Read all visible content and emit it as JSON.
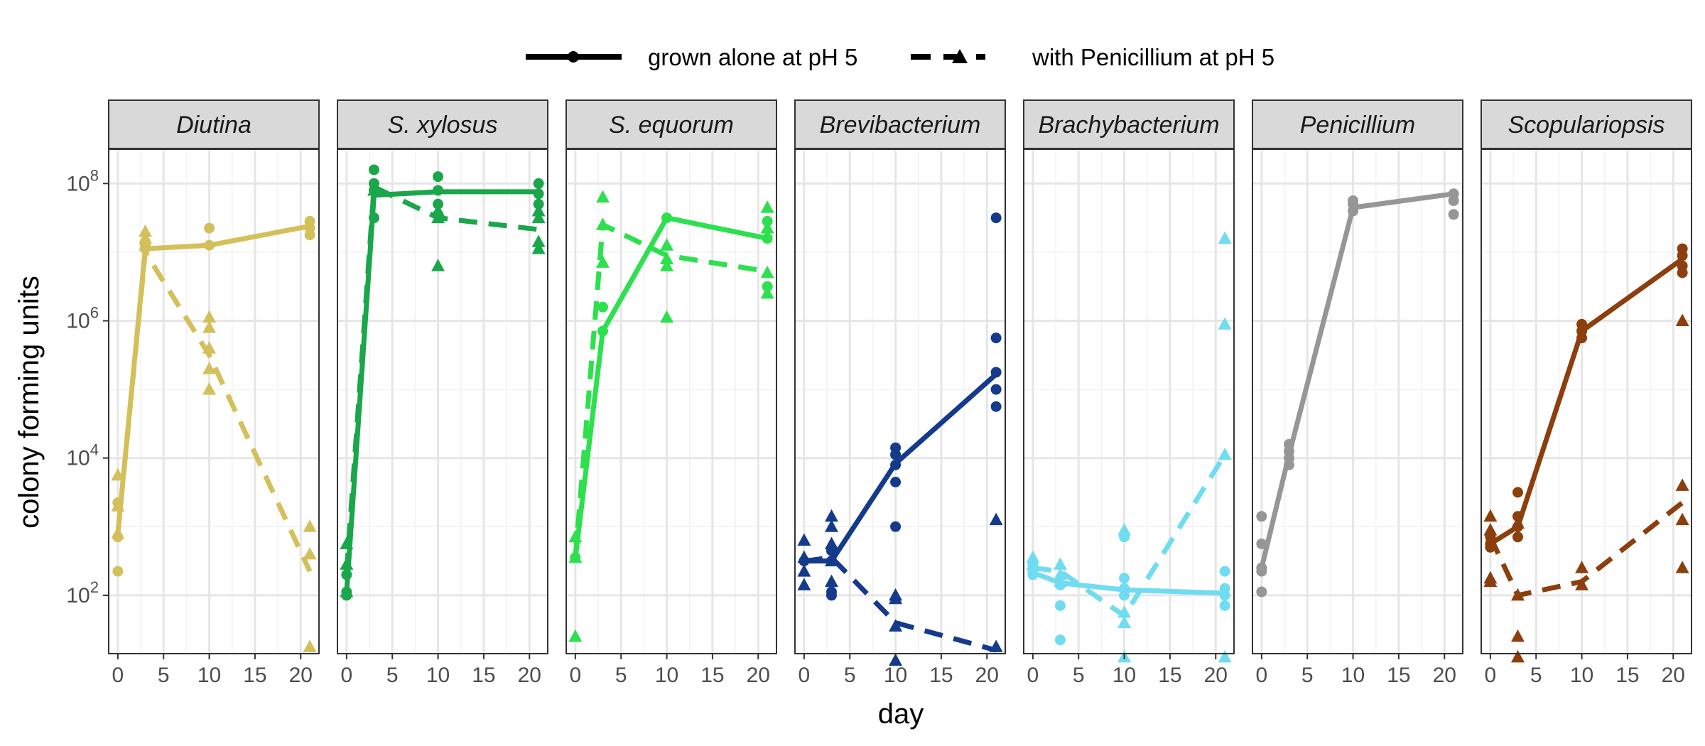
{
  "chart_data": {
    "type": "line",
    "xlabel": "day",
    "ylabel": "colony forming units",
    "x_ticks": [
      0,
      5,
      10,
      15,
      20
    ],
    "xlim": [
      -1,
      22
    ],
    "y_scale": "log10",
    "ylim_log10": [
      1.15,
      8.5
    ],
    "y_ticks": [
      {
        "log10": 2,
        "base": "10",
        "exp": "2"
      },
      {
        "log10": 4,
        "base": "10",
        "exp": "4"
      },
      {
        "log10": 6,
        "base": "10",
        "exp": "6"
      },
      {
        "log10": 8,
        "base": "10",
        "exp": "8"
      }
    ],
    "legend_position": "top",
    "legend": [
      {
        "label": "grown alone at pH 5",
        "linetype": "solid",
        "shape": "circle"
      },
      {
        "label": "with Penicillium at pH 5",
        "linetype": "dashed",
        "shape": "triangle"
      }
    ],
    "panels": [
      {
        "name": "Diutina",
        "color": "#d4c05a",
        "alone_points": [
          [
            0,
            2.35
          ],
          [
            0,
            2.85
          ],
          [
            0,
            3.35
          ],
          [
            3,
            7.05
          ],
          [
            3,
            7.1
          ],
          [
            3,
            7.15
          ],
          [
            10,
            7.1
          ],
          [
            10,
            7.35
          ],
          [
            21,
            7.25
          ],
          [
            21,
            7.35
          ],
          [
            21,
            7.45
          ]
        ],
        "alone_line": [
          [
            0,
            2.9
          ],
          [
            3,
            7.05
          ],
          [
            10,
            7.1
          ],
          [
            21,
            7.38
          ]
        ],
        "penicillium_points": [
          [
            0,
            2.9
          ],
          [
            0,
            3.3
          ],
          [
            0,
            3.75
          ],
          [
            3,
            7.1
          ],
          [
            3,
            7.2
          ],
          [
            3,
            7.3
          ],
          [
            10,
            5.0
          ],
          [
            10,
            5.3
          ],
          [
            10,
            5.6
          ],
          [
            10,
            5.9
          ],
          [
            10,
            6.05
          ],
          [
            21,
            1.25
          ],
          [
            21,
            2.6
          ],
          [
            21,
            3.0
          ]
        ],
        "penicillium_line": [
          [
            0,
            2.9
          ],
          [
            3,
            7.0
          ],
          [
            10,
            5.5
          ],
          [
            21,
            2.35
          ]
        ]
      },
      {
        "name": "S. xylosus",
        "color": "#1aa64a",
        "alone_points": [
          [
            0,
            2.0
          ],
          [
            0,
            2.05
          ],
          [
            0,
            2.3
          ],
          [
            3,
            7.5
          ],
          [
            3,
            7.9
          ],
          [
            3,
            8.0
          ],
          [
            3,
            8.2
          ],
          [
            10,
            7.55
          ],
          [
            10,
            7.7
          ],
          [
            10,
            7.9
          ],
          [
            10,
            8.1
          ],
          [
            21,
            7.7
          ],
          [
            21,
            7.85
          ],
          [
            21,
            8.0
          ]
        ],
        "alone_line": [
          [
            0,
            2.05
          ],
          [
            3,
            7.83
          ],
          [
            10,
            7.88
          ],
          [
            21,
            7.88
          ]
        ],
        "penicillium_points": [
          [
            0,
            2.05
          ],
          [
            0,
            2.45
          ],
          [
            0,
            2.75
          ],
          [
            3,
            7.9
          ],
          [
            10,
            6.8
          ],
          [
            10,
            7.5
          ],
          [
            10,
            7.6
          ],
          [
            21,
            7.05
          ],
          [
            21,
            7.15
          ],
          [
            21,
            7.5
          ],
          [
            21,
            7.6
          ]
        ],
        "penicillium_line": [
          [
            0,
            2.35
          ],
          [
            3,
            7.95
          ],
          [
            10,
            7.5
          ],
          [
            21,
            7.33
          ]
        ]
      },
      {
        "name": "S. equorum",
        "color": "#2de04e",
        "alone_points": [
          [
            0,
            2.55
          ],
          [
            3,
            5.85
          ],
          [
            3,
            6.2
          ],
          [
            10,
            7.5
          ],
          [
            21,
            6.5
          ],
          [
            21,
            7.2
          ],
          [
            21,
            7.45
          ]
        ],
        "alone_line": [
          [
            0,
            2.55
          ],
          [
            3,
            5.85
          ],
          [
            10,
            7.5
          ],
          [
            21,
            7.2
          ]
        ],
        "penicillium_points": [
          [
            0,
            1.4
          ],
          [
            0,
            2.55
          ],
          [
            0,
            2.85
          ],
          [
            3,
            6.85
          ],
          [
            3,
            7.4
          ],
          [
            3,
            7.8
          ],
          [
            10,
            6.05
          ],
          [
            10,
            6.8
          ],
          [
            10,
            6.9
          ],
          [
            10,
            7.1
          ],
          [
            21,
            6.4
          ],
          [
            21,
            6.7
          ],
          [
            21,
            7.35
          ],
          [
            21,
            7.65
          ]
        ],
        "penicillium_line": [
          [
            0,
            2.55
          ],
          [
            3,
            7.4
          ],
          [
            10,
            6.95
          ],
          [
            21,
            6.72
          ]
        ]
      },
      {
        "name": "Brevibacterium",
        "color": "#143a8c",
        "alone_points": [
          [
            0,
            2.5
          ],
          [
            3,
            2.0
          ],
          [
            3,
            2.05
          ],
          [
            3,
            2.5
          ],
          [
            3,
            2.65
          ],
          [
            10,
            3.0
          ],
          [
            10,
            3.65
          ],
          [
            10,
            3.9
          ],
          [
            10,
            4.05
          ],
          [
            10,
            4.15
          ],
          [
            21,
            4.75
          ],
          [
            21,
            5.0
          ],
          [
            21,
            5.25
          ],
          [
            21,
            5.75
          ],
          [
            21,
            7.5
          ]
        ],
        "alone_line": [
          [
            0,
            2.5
          ],
          [
            3,
            2.5
          ],
          [
            10,
            3.92
          ],
          [
            21,
            5.22
          ]
        ],
        "penicillium_points": [
          [
            0,
            2.15
          ],
          [
            0,
            2.35
          ],
          [
            0,
            2.55
          ],
          [
            0,
            2.8
          ],
          [
            3,
            2.2
          ],
          [
            3,
            2.5
          ],
          [
            3,
            2.75
          ],
          [
            3,
            3.0
          ],
          [
            3,
            3.15
          ],
          [
            10,
            1.05
          ],
          [
            10,
            1.55
          ],
          [
            10,
            1.95
          ],
          [
            10,
            2.0
          ],
          [
            21,
            1.25
          ],
          [
            21,
            3.1
          ]
        ],
        "penicillium_line": [
          [
            0,
            2.5
          ],
          [
            3,
            2.55
          ],
          [
            10,
            1.6
          ],
          [
            21,
            1.2
          ]
        ]
      },
      {
        "name": "Brachybacterium",
        "color": "#70dcf2",
        "alone_points": [
          [
            0,
            2.3
          ],
          [
            0,
            2.35
          ],
          [
            0,
            2.45
          ],
          [
            3,
            1.35
          ],
          [
            3,
            1.85
          ],
          [
            3,
            2.15
          ],
          [
            10,
            2.0
          ],
          [
            10,
            2.1
          ],
          [
            10,
            2.25
          ],
          [
            10,
            2.85
          ],
          [
            21,
            1.85
          ],
          [
            21,
            2.0
          ],
          [
            21,
            2.1
          ],
          [
            21,
            2.35
          ]
        ],
        "alone_line": [
          [
            0,
            2.33
          ],
          [
            3,
            2.18
          ],
          [
            10,
            2.08
          ],
          [
            21,
            2.03
          ]
        ],
        "penicillium_points": [
          [
            0,
            2.45
          ],
          [
            0,
            2.55
          ],
          [
            3,
            2.2
          ],
          [
            3,
            2.3
          ],
          [
            3,
            2.45
          ],
          [
            10,
            1.1
          ],
          [
            10,
            1.6
          ],
          [
            10,
            1.75
          ],
          [
            10,
            2.95
          ],
          [
            21,
            1.1
          ],
          [
            21,
            4.05
          ],
          [
            21,
            5.95
          ],
          [
            21,
            7.2
          ]
        ],
        "penicillium_line": [
          [
            0,
            2.4
          ],
          [
            3,
            2.35
          ],
          [
            10,
            1.7
          ],
          [
            21,
            4.05
          ]
        ]
      },
      {
        "name": "Penicillium",
        "color": "#969696",
        "alone_points": [
          [
            0,
            2.05
          ],
          [
            0,
            2.35
          ],
          [
            0,
            2.4
          ],
          [
            0,
            2.75
          ],
          [
            0,
            3.15
          ],
          [
            3,
            3.9
          ],
          [
            3,
            4.0
          ],
          [
            3,
            4.1
          ],
          [
            3,
            4.2
          ],
          [
            10,
            7.6
          ],
          [
            10,
            7.7
          ],
          [
            10,
            7.75
          ],
          [
            21,
            7.55
          ],
          [
            21,
            7.75
          ],
          [
            21,
            7.85
          ]
        ],
        "alone_line": [
          [
            0,
            2.4
          ],
          [
            3,
            4.05
          ],
          [
            10,
            7.65
          ],
          [
            21,
            7.85
          ]
        ]
      },
      {
        "name": "Scopulariopsis",
        "color": "#8c3e0c",
        "alone_points": [
          [
            0,
            2.7
          ],
          [
            0,
            2.75
          ],
          [
            0,
            2.85
          ],
          [
            3,
            2.85
          ],
          [
            3,
            3.0
          ],
          [
            3,
            3.15
          ],
          [
            3,
            3.5
          ],
          [
            10,
            5.75
          ],
          [
            10,
            5.85
          ],
          [
            10,
            5.95
          ],
          [
            21,
            6.7
          ],
          [
            21,
            6.8
          ],
          [
            21,
            6.95
          ],
          [
            21,
            7.05
          ]
        ],
        "alone_line": [
          [
            0,
            2.75
          ],
          [
            3,
            3.0
          ],
          [
            10,
            5.85
          ],
          [
            21,
            6.9
          ]
        ],
        "penicillium_points": [
          [
            0,
            2.2
          ],
          [
            0,
            2.25
          ],
          [
            0,
            2.95
          ],
          [
            0,
            3.15
          ],
          [
            3,
            1.1
          ],
          [
            3,
            1.4
          ],
          [
            3,
            2.0
          ],
          [
            3,
            3.05
          ],
          [
            10,
            2.15
          ],
          [
            10,
            2.4
          ],
          [
            21,
            2.4
          ],
          [
            21,
            3.1
          ],
          [
            21,
            3.6
          ],
          [
            21,
            6.0
          ]
        ],
        "penicillium_line": [
          [
            0,
            2.85
          ],
          [
            3,
            2.0
          ],
          [
            10,
            2.2
          ],
          [
            21,
            3.35
          ]
        ]
      }
    ]
  }
}
